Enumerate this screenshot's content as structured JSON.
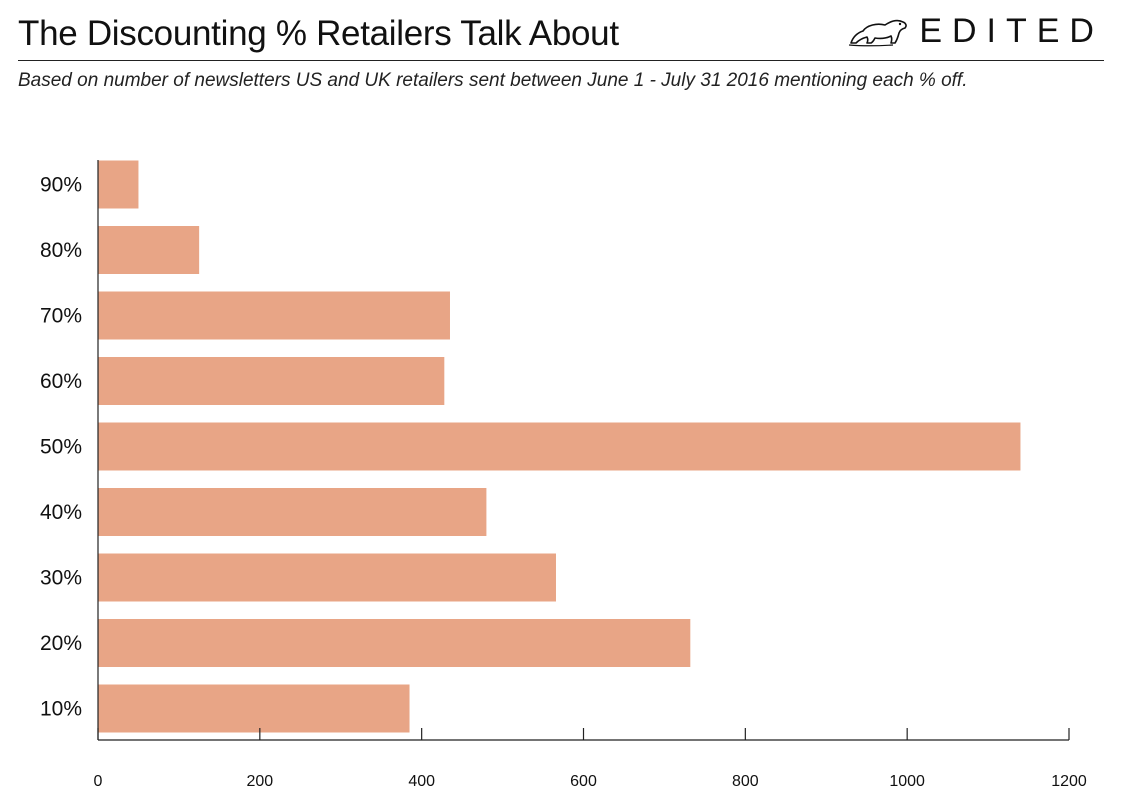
{
  "header": {
    "title": "The Discounting % Retailers Talk About",
    "subtitle": "Based on number of newsletters US and UK retailers sent between June 1 - July 31 2016 mentioning each % off.",
    "brand": "EDITED",
    "brand_icon": "polar-bear-icon"
  },
  "colors": {
    "bar": "#e8a586",
    "axis": "#222222"
  },
  "chart_data": {
    "type": "bar",
    "orientation": "horizontal",
    "categories": [
      "90%",
      "80%",
      "70%",
      "60%",
      "50%",
      "40%",
      "30%",
      "20%",
      "10%"
    ],
    "values": [
      50,
      125,
      435,
      428,
      1140,
      480,
      566,
      732,
      385
    ],
    "xlim": [
      0,
      1200
    ],
    "xticks": [
      0,
      200,
      400,
      600,
      800,
      1000,
      1200
    ],
    "title": "The Discounting % Retailers Talk About",
    "xlabel": "",
    "ylabel": "",
    "grid": false,
    "legend": "none"
  }
}
